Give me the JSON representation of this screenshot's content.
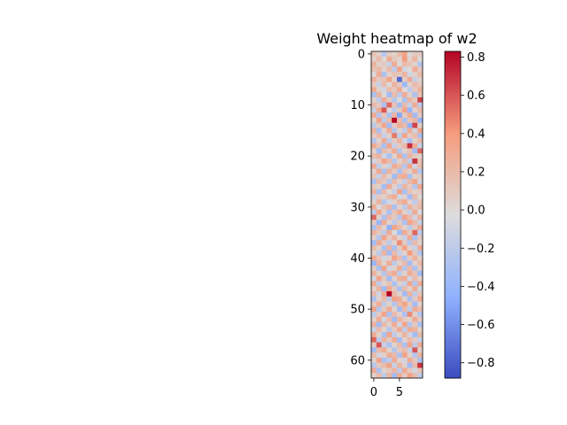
{
  "chart_data": {
    "type": "heatmap",
    "title": "Weight heatmap of w2",
    "xlabel": "",
    "ylabel": "",
    "rows": 64,
    "cols": 10,
    "x_ticks": [
      0,
      5
    ],
    "y_ticks": [
      0,
      10,
      20,
      30,
      40,
      50,
      60
    ],
    "colormap": "coolwarm",
    "colorbar": {
      "vmin": -0.88,
      "vmax": 0.83,
      "ticks": [
        -0.8,
        -0.6,
        -0.4,
        -0.2,
        0.0,
        0.2,
        0.4,
        0.6,
        0.8
      ],
      "tick_labels": [
        "−0.8",
        "−0.6",
        "−0.4",
        "−0.2",
        "0.0",
        "0.2",
        "0.4",
        "0.6",
        "0.8"
      ]
    },
    "values": [
      [
        0.15,
        0.05,
        -0.25,
        0.1,
        0.05,
        0.2,
        0.35,
        0.0,
        0.1,
        0.1
      ],
      [
        0.05,
        0.2,
        0.0,
        0.3,
        0.1,
        0.05,
        0.4,
        0.05,
        0.25,
        0.0
      ],
      [
        0.25,
        0.05,
        0.1,
        -0.15,
        0.3,
        0.0,
        0.2,
        0.15,
        0.05,
        -0.25
      ],
      [
        0.15,
        0.2,
        0.05,
        0.2,
        -0.2,
        0.35,
        -0.1,
        0.0,
        0.3,
        0.1
      ],
      [
        0.0,
        0.3,
        -0.3,
        0.05,
        0.15,
        0.1,
        0.25,
        -0.1,
        0.05,
        0.2
      ],
      [
        0.25,
        0.1,
        0.15,
        0.35,
        0.05,
        -0.75,
        0.1,
        0.3,
        -0.15,
        0.05
      ],
      [
        0.1,
        -0.15,
        0.2,
        0.0,
        0.25,
        0.1,
        -0.4,
        0.05,
        0.2,
        0.1
      ],
      [
        0.3,
        0.05,
        -0.1,
        0.2,
        0.1,
        0.3,
        0.0,
        -0.2,
        0.1,
        0.25
      ],
      [
        -0.3,
        0.25,
        0.0,
        -0.35,
        0.2,
        -0.2,
        0.3,
        0.05,
        -0.3,
        0.15
      ],
      [
        0.05,
        -0.2,
        0.3,
        0.1,
        -0.25,
        0.0,
        -0.3,
        0.25,
        0.1,
        0.65
      ],
      [
        0.2,
        0.1,
        -0.3,
        0.55,
        0.15,
        -0.35,
        0.2,
        -0.15,
        0.3,
        -0.2
      ],
      [
        -0.15,
        0.3,
        0.6,
        0.0,
        -0.2,
        0.1,
        0.35,
        -0.4,
        0.05,
        0.2
      ],
      [
        0.3,
        -0.25,
        0.15,
        -0.3,
        0.25,
        -0.5,
        0.1,
        0.3,
        -0.35,
        0.1
      ],
      [
        0.05,
        0.35,
        -0.2,
        0.2,
        0.83,
        0.2,
        -0.3,
        0.15,
        0.25,
        -0.4
      ],
      [
        -0.2,
        0.1,
        0.35,
        -0.35,
        0.1,
        0.3,
        0.2,
        -0.45,
        0.65,
        0.05
      ],
      [
        0.25,
        -0.3,
        0.05,
        0.3,
        -0.25,
        0.05,
        -0.2,
        0.3,
        -0.1,
        0.35
      ],
      [
        0.1,
        0.2,
        -0.15,
        0.05,
        0.5,
        -0.2,
        0.35,
        0.1,
        0.2,
        -0.3
      ],
      [
        -0.25,
        0.05,
        0.3,
        -0.2,
        0.1,
        0.25,
        -0.1,
        -0.3,
        0.05,
        0.2
      ],
      [
        0.3,
        0.15,
        -0.3,
        0.35,
        -0.15,
        0.1,
        0.2,
        0.7,
        0.3,
        -0.15
      ],
      [
        0.05,
        -0.35,
        0.2,
        0.1,
        0.3,
        -0.25,
        0.05,
        0.15,
        -0.35,
        0.55
      ],
      [
        0.2,
        0.25,
        -0.1,
        -0.3,
        0.05,
        0.3,
        -0.3,
        0.25,
        0.1,
        0.05
      ],
      [
        -0.1,
        0.1,
        0.35,
        0.2,
        -0.25,
        0.05,
        0.2,
        -0.2,
        0.7,
        0.15
      ],
      [
        0.3,
        -0.2,
        0.05,
        -0.15,
        0.3,
        0.2,
        -0.25,
        0.35,
        -0.1,
        0.2
      ],
      [
        0.05,
        0.3,
        -0.3,
        0.25,
        0.1,
        -0.3,
        0.15,
        0.05,
        0.3,
        -0.25
      ],
      [
        0.15,
        -0.15,
        0.2,
        0.05,
        -0.35,
        0.25,
        0.3,
        -0.3,
        0.05,
        0.1
      ],
      [
        -0.3,
        0.2,
        0.1,
        -0.25,
        0.2,
        0.05,
        -0.15,
        0.2,
        0.35,
        -0.1
      ],
      [
        0.1,
        0.05,
        -0.35,
        0.3,
        0.05,
        -0.2,
        0.25,
        0.1,
        -0.25,
        0.3
      ],
      [
        0.25,
        -0.3,
        0.2,
        0.0,
        -0.15,
        0.35,
        -0.3,
        0.15,
        0.05,
        0.1
      ],
      [
        -0.15,
        0.1,
        0.05,
        0.2,
        0.3,
        -0.1,
        0.05,
        -0.35,
        0.2,
        0.0
      ],
      [
        0.05,
        0.25,
        -0.25,
        -0.1,
        0.05,
        0.2,
        0.3,
        0.05,
        -0.2,
        0.15
      ],
      [
        0.3,
        -0.05,
        0.15,
        0.25,
        -0.3,
        0.05,
        -0.2,
        0.25,
        0.1,
        0.2
      ],
      [
        -0.2,
        0.35,
        0.05,
        -0.3,
        0.15,
        0.3,
        0.05,
        -0.15,
        0.3,
        -0.05
      ],
      [
        0.55,
        0.05,
        -0.3,
        0.2,
        0.1,
        -0.25,
        0.35,
        0.2,
        -0.1,
        0.25
      ],
      [
        0.1,
        -0.4,
        0.3,
        0.05,
        -0.2,
        0.1,
        -0.3,
        0.35,
        0.2,
        -0.15
      ],
      [
        -0.3,
        0.2,
        0.05,
        -0.45,
        0.35,
        0.2,
        0.05,
        -0.2,
        0.1,
        0.3
      ],
      [
        0.25,
        0.1,
        -0.2,
        0.3,
        -0.05,
        -0.35,
        0.3,
        0.1,
        0.55,
        -0.2
      ],
      [
        0.05,
        -0.25,
        0.35,
        0.1,
        0.25,
        0.05,
        -0.15,
        0.3,
        -0.3,
        0.1
      ],
      [
        -0.35,
        0.3,
        0.1,
        -0.2,
        0.05,
        0.45,
        0.1,
        -0.25,
        0.2,
        0.05
      ],
      [
        0.2,
        0.05,
        -0.3,
        0.25,
        -0.3,
        0.1,
        0.35,
        0.05,
        -0.15,
        0.3
      ],
      [
        0.05,
        -0.2,
        0.25,
        -0.35,
        0.2,
        -0.15,
        0.05,
        0.4,
        0.1,
        -0.25
      ],
      [
        0.3,
        0.15,
        -0.1,
        0.05,
        0.35,
        0.2,
        -0.3,
        0.1,
        0.25,
        0.05
      ],
      [
        -0.4,
        0.25,
        0.05,
        0.3,
        -0.2,
        0.05,
        0.2,
        -0.35,
        0.05,
        0.2
      ],
      [
        0.1,
        -0.3,
        0.35,
        -0.1,
        0.05,
        0.3,
        -0.25,
        0.2,
        -0.3,
        0.1
      ],
      [
        0.25,
        0.05,
        -0.25,
        0.2,
        0.3,
        -0.2,
        0.05,
        0.3,
        0.15,
        -0.35
      ],
      [
        -0.1,
        0.35,
        0.1,
        -0.35,
        0.05,
        0.25,
        0.3,
        -0.1,
        0.2,
        0.05
      ],
      [
        0.3,
        -0.2,
        0.05,
        0.15,
        -0.3,
        0.05,
        -0.15,
        0.35,
        -0.25,
        0.3
      ],
      [
        0.05,
        0.25,
        -0.35,
        0.3,
        0.1,
        -0.3,
        0.2,
        0.05,
        0.3,
        -0.1
      ],
      [
        0.2,
        -0.1,
        0.3,
        0.83,
        0.2,
        0.05,
        -0.35,
        0.25,
        -0.2,
        0.15
      ],
      [
        -0.3,
        0.05,
        0.2,
        -0.2,
        0.35,
        0.3,
        0.05,
        -0.3,
        0.1,
        0.3
      ],
      [
        0.1,
        0.3,
        -0.2,
        0.05,
        -0.25,
        0.2,
        0.35,
        0.1,
        -0.35,
        0.05
      ],
      [
        0.35,
        -0.25,
        0.1,
        0.3,
        0.05,
        -0.35,
        0.2,
        -0.2,
        0.3,
        0.2
      ],
      [
        -0.2,
        0.1,
        0.35,
        -0.3,
        0.2,
        0.05,
        -0.3,
        0.45,
        0.05,
        -0.25
      ],
      [
        0.05,
        0.3,
        -0.1,
        0.2,
        -0.35,
        0.25,
        0.1,
        0.05,
        0.3,
        0.1
      ],
      [
        0.25,
        -0.35,
        0.2,
        0.05,
        0.3,
        -0.1,
        0.35,
        -0.25,
        0.1,
        -0.3
      ],
      [
        -0.15,
        0.2,
        0.05,
        -0.25,
        0.1,
        0.3,
        -0.2,
        0.3,
        0.25,
        0.05
      ],
      [
        0.3,
        0.05,
        -0.3,
        0.35,
        -0.2,
        0.05,
        0.25,
        -0.1,
        -0.35,
        0.2
      ],
      [
        0.55,
        -0.2,
        0.25,
        0.1,
        0.3,
        -0.35,
        0.05,
        0.2,
        0.1,
        -0.15
      ],
      [
        0.1,
        0.6,
        -0.15,
        -0.3,
        0.05,
        0.2,
        -0.3,
        0.35,
        -0.2,
        0.3
      ],
      [
        -0.35,
        0.2,
        0.3,
        0.05,
        -0.25,
        0.1,
        0.2,
        -0.15,
        0.6,
        0.05
      ],
      [
        0.2,
        -0.1,
        0.05,
        0.3,
        0.2,
        -0.3,
        0.35,
        0.05,
        -0.25,
        0.25
      ],
      [
        0.05,
        0.35,
        -0.3,
        -0.2,
        0.3,
        0.05,
        -0.1,
        0.3,
        0.1,
        -0.3
      ],
      [
        -0.25,
        0.1,
        0.2,
        0.35,
        -0.15,
        0.25,
        0.05,
        -0.35,
        0.2,
        0.7
      ],
      [
        0.3,
        -0.3,
        0.05,
        0.1,
        0.25,
        -0.2,
        0.3,
        0.1,
        -0.1,
        0.15
      ],
      [
        0.05,
        0.2,
        -0.2,
        0.25,
        -0.35,
        0.3,
        0.1,
        0.35,
        0.2,
        -0.2
      ]
    ]
  }
}
